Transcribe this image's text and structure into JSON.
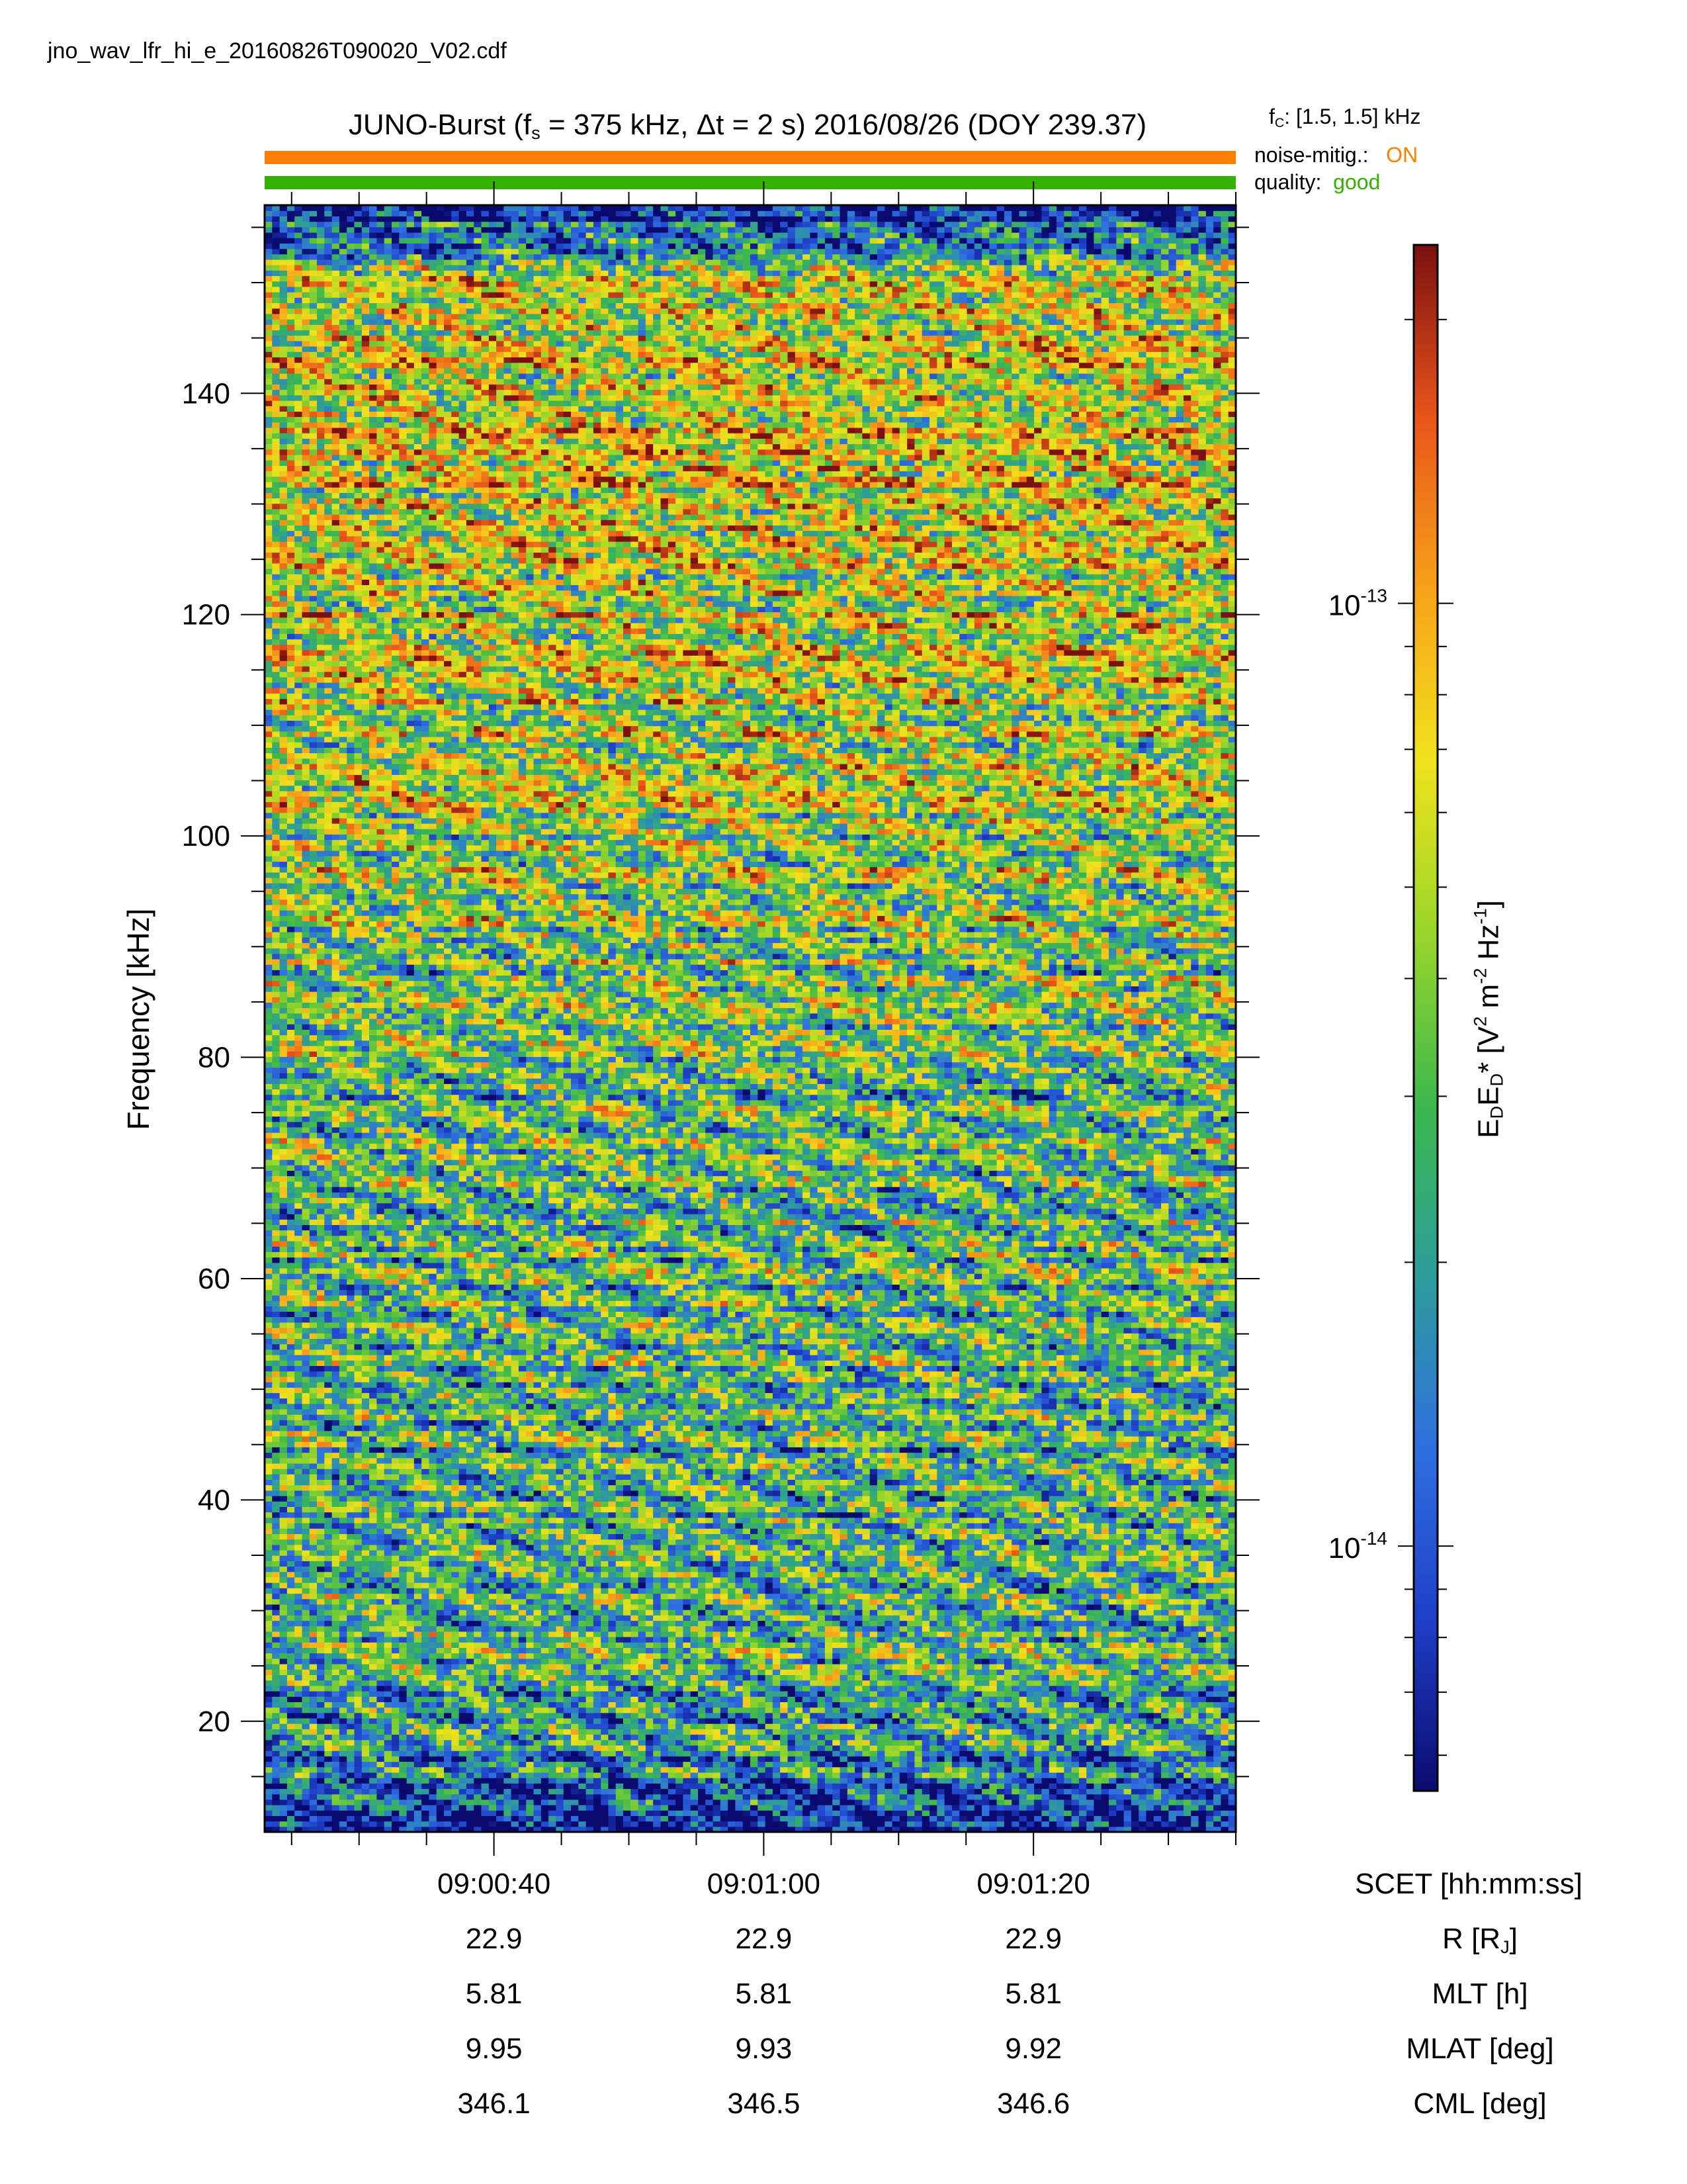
{
  "file": {
    "name": "jno_wav_lfr_hi_e_20160826T090020_V02.cdf"
  },
  "header": {
    "title_prefix": "JUNO-Burst (f",
    "title_sub": "s",
    "title_rest": " = 375 kHz, Δt = 2 s)  2016/08/26 (DOY 239.37)",
    "fc_label": "f",
    "fc_sub": "C",
    "fc_value": ": [1.5, 1.5] kHz",
    "noise_label": "noise-mitig.:",
    "noise_value": "ON",
    "quality_label": "quality:",
    "quality_value": "good",
    "colors": {
      "noise": "#ff8000",
      "quality": "#33b300"
    }
  },
  "chart_data": {
    "type": "heatmap",
    "ylabel": "Frequency [kHz]",
    "ylim": [
      10,
      157
    ],
    "y_ticks": [
      20,
      40,
      60,
      80,
      100,
      120,
      140
    ],
    "x_ticks": [
      "09:00:40",
      "09:01:00",
      "09:01:20"
    ],
    "x_axis_label": "SCET [hh:mm:ss]",
    "xlim_seconds": [
      23,
      95
    ],
    "x_tick_seconds": [
      40,
      60,
      80
    ],
    "colorbar": {
      "label_html": "E<sub>D</sub>E<sub>D</sub>* [V<sup>2</sup> m<sup>-2</sup> Hz<sup>-1</sup>]",
      "scale": "log",
      "range": [
        5.5e-15,
        2.4e-13
      ],
      "ticks": [
        {
          "label_base": "10",
          "label_exp": "-13",
          "value": 1e-13
        },
        {
          "label_base": "10",
          "label_exp": "-14",
          "value": 1e-14
        }
      ],
      "colormap": [
        "#0a0a6e",
        "#1f3fc8",
        "#2f6fe0",
        "#2e9c9a",
        "#3db84c",
        "#9ad62a",
        "#f0e21c",
        "#f7a21a",
        "#e8541a",
        "#7a1010"
      ]
    },
    "ephemeris": [
      {
        "label": "R [R",
        "label_sub": "J",
        "label_end": "]",
        "values": [
          "22.9",
          "22.9",
          "22.9"
        ]
      },
      {
        "label": "MLT [h]",
        "values": [
          "5.81",
          "5.81",
          "5.81"
        ]
      },
      {
        "label": "MLAT [deg]",
        "values": [
          "9.95",
          "9.93",
          "9.92"
        ]
      },
      {
        "label": "CML [deg]",
        "values": [
          "346.1",
          "346.5",
          "346.6"
        ]
      }
    ],
    "intensity_profile": [
      {
        "f": 12,
        "level": 0.08
      },
      {
        "f": 18,
        "level": 0.36
      },
      {
        "f": 40,
        "level": 0.4
      },
      {
        "f": 80,
        "level": 0.45
      },
      {
        "f": 100,
        "level": 0.54
      },
      {
        "f": 120,
        "level": 0.6
      },
      {
        "f": 140,
        "level": 0.66
      },
      {
        "f": 150,
        "level": 0.62
      },
      {
        "f": 155,
        "level": 0.12
      }
    ]
  }
}
